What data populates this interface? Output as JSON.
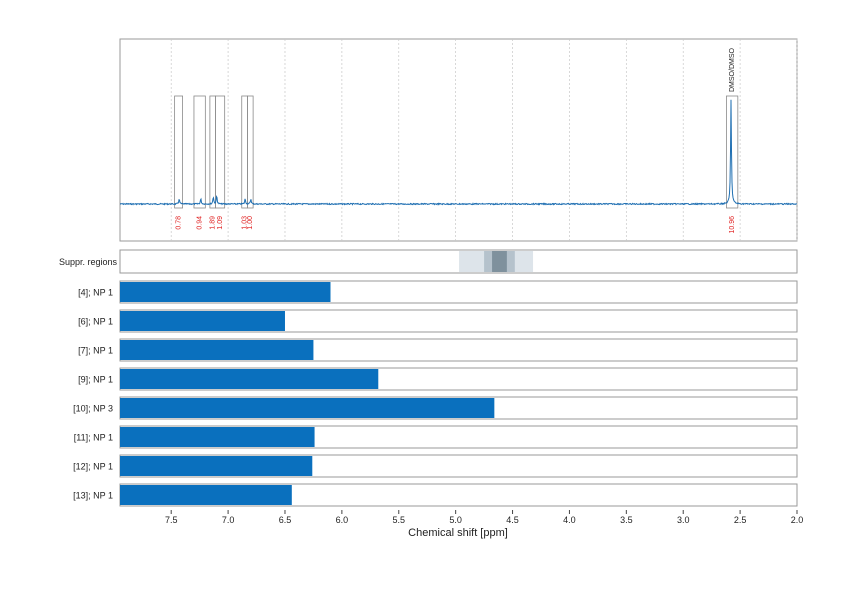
{
  "chart_data": {
    "type": "nmr_spectrum_with_ranges",
    "xlabel": "Chemical shift [ppm]",
    "xlim": [
      7.95,
      2.0
    ],
    "xticks": [
      7.5,
      7.0,
      6.5,
      6.0,
      5.5,
      5.0,
      4.5,
      4.0,
      3.5,
      3.0,
      2.5,
      2.0
    ],
    "xtick_labels": [
      "7.5",
      "7.0",
      "6.5",
      "6.0",
      "5.5",
      "5.0",
      "4.5",
      "4.0",
      "3.5",
      "3.0",
      "2.5",
      "2.0"
    ],
    "spectrum": {
      "color": "#1f6fb2",
      "peaks": [
        {
          "ppm": 7.43,
          "height": 0.05
        },
        {
          "ppm": 7.24,
          "height": 0.05
        },
        {
          "ppm": 7.13,
          "height": 0.07
        },
        {
          "ppm": 7.1,
          "height": 0.08
        },
        {
          "ppm": 6.85,
          "height": 0.05
        },
        {
          "ppm": 6.8,
          "height": 0.05
        },
        {
          "ppm": 2.58,
          "height": 1.0
        }
      ]
    },
    "integration_regions": [
      {
        "from": 7.47,
        "to": 7.4,
        "integral": "0.78"
      },
      {
        "from": 7.3,
        "to": 7.2,
        "integral": "0.94"
      },
      {
        "from": 7.16,
        "to": 7.11,
        "integral": "1.89"
      },
      {
        "from": 7.11,
        "to": 7.03,
        "integral": "1.09"
      },
      {
        "from": 6.88,
        "to": 6.83,
        "integral": "1.03"
      },
      {
        "from": 6.83,
        "to": 6.78,
        "integral": "1.00"
      },
      {
        "from": 2.62,
        "to": 2.52,
        "integral": "10.96",
        "label": "DMSO/DMSO"
      }
    ],
    "suppression": {
      "label": "Suppr. regions",
      "bands": [
        {
          "from": 4.97,
          "to": 4.32,
          "color": "#dde4ea"
        },
        {
          "from": 4.75,
          "to": 4.48,
          "color": "#b5c2cc"
        },
        {
          "from": 4.68,
          "to": 4.55,
          "color": "#7f919d"
        }
      ]
    },
    "range_rows": {
      "color": "#0a70be",
      "start": 7.95,
      "rows": [
        {
          "label": "[4]; NP 1",
          "end": 6.1
        },
        {
          "label": "[6]; NP 1",
          "end": 6.5
        },
        {
          "label": "[7]; NP 1",
          "end": 6.25
        },
        {
          "label": "[9]; NP 1",
          "end": 5.68
        },
        {
          "label": "[10]; NP 3",
          "end": 4.66
        },
        {
          "label": "[11]; NP 1",
          "end": 6.24
        },
        {
          "label": "[12]; NP 1",
          "end": 6.26
        },
        {
          "label": "[13]; NP 1",
          "end": 6.44
        }
      ]
    }
  }
}
